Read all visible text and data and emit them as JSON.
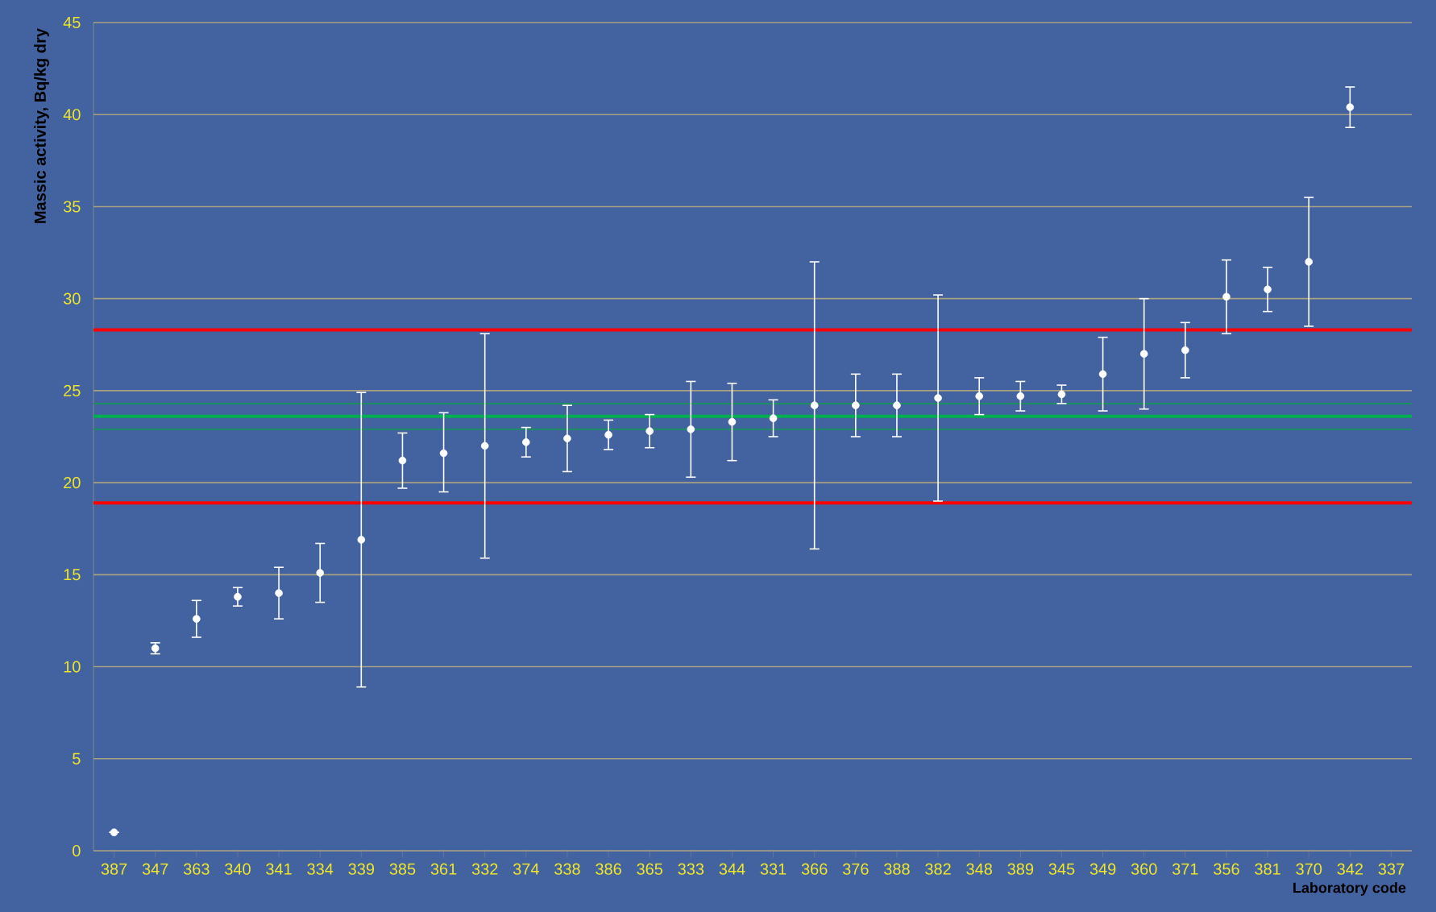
{
  "chart_data": {
    "type": "scatter",
    "xlabel": "Laboratory code",
    "ylabel": "Massic activity, Bq/kg dry",
    "categories": [
      "387",
      "347",
      "363",
      "340",
      "341",
      "334",
      "339",
      "385",
      "361",
      "332",
      "374",
      "338",
      "386",
      "365",
      "333",
      "344",
      "331",
      "366",
      "376",
      "388",
      "382",
      "348",
      "389",
      "345",
      "349",
      "360",
      "371",
      "356",
      "381",
      "370",
      "342",
      "337"
    ],
    "series": [
      {
        "color": "#ffffff",
        "values": [
          1.0,
          11.0,
          12.6,
          13.8,
          14.0,
          15.1,
          16.9,
          21.2,
          21.6,
          22.0,
          22.2,
          22.4,
          22.6,
          22.8,
          22.9,
          23.3,
          23.5,
          24.2,
          24.2,
          24.2,
          24.6,
          24.7,
          24.7,
          24.8,
          25.9,
          27.0,
          27.2,
          30.1,
          30.5,
          32.0,
          40.4,
          null
        ],
        "errors": [
          null,
          0.3,
          1.0,
          0.5,
          1.4,
          1.6,
          8.0,
          1.5,
          [
            19.5,
            23.8
          ],
          6.1,
          0.8,
          1.8,
          0.8,
          0.9,
          2.6,
          2.1,
          1.0,
          7.8,
          1.7,
          1.7,
          5.6,
          1.0,
          0.8,
          0.5,
          2.0,
          3.0,
          1.5,
          2.0,
          1.2,
          3.5,
          1.1,
          null
        ]
      }
    ],
    "ylim": [
      0,
      45
    ],
    "yticks": [
      0,
      5,
      10,
      15,
      20,
      25,
      30,
      35,
      40,
      45
    ],
    "grid": "y",
    "marker": "circle",
    "ref_lines": [
      {
        "axis": "y",
        "value": 28.3,
        "color": "#ff0000",
        "line_style": "solid"
      },
      {
        "axis": "y",
        "value": 18.9,
        "color": "#ff0000",
        "line_style": "solid"
      },
      {
        "axis": "y",
        "value": 23.6,
        "color": "#00b050",
        "line_style": "solid"
      },
      {
        "axis": "y",
        "value": 24.3,
        "color": "#1a9060",
        "line_style": "solid"
      },
      {
        "axis": "y",
        "value": 22.9,
        "color": "#1a9060",
        "line_style": "solid"
      }
    ]
  }
}
